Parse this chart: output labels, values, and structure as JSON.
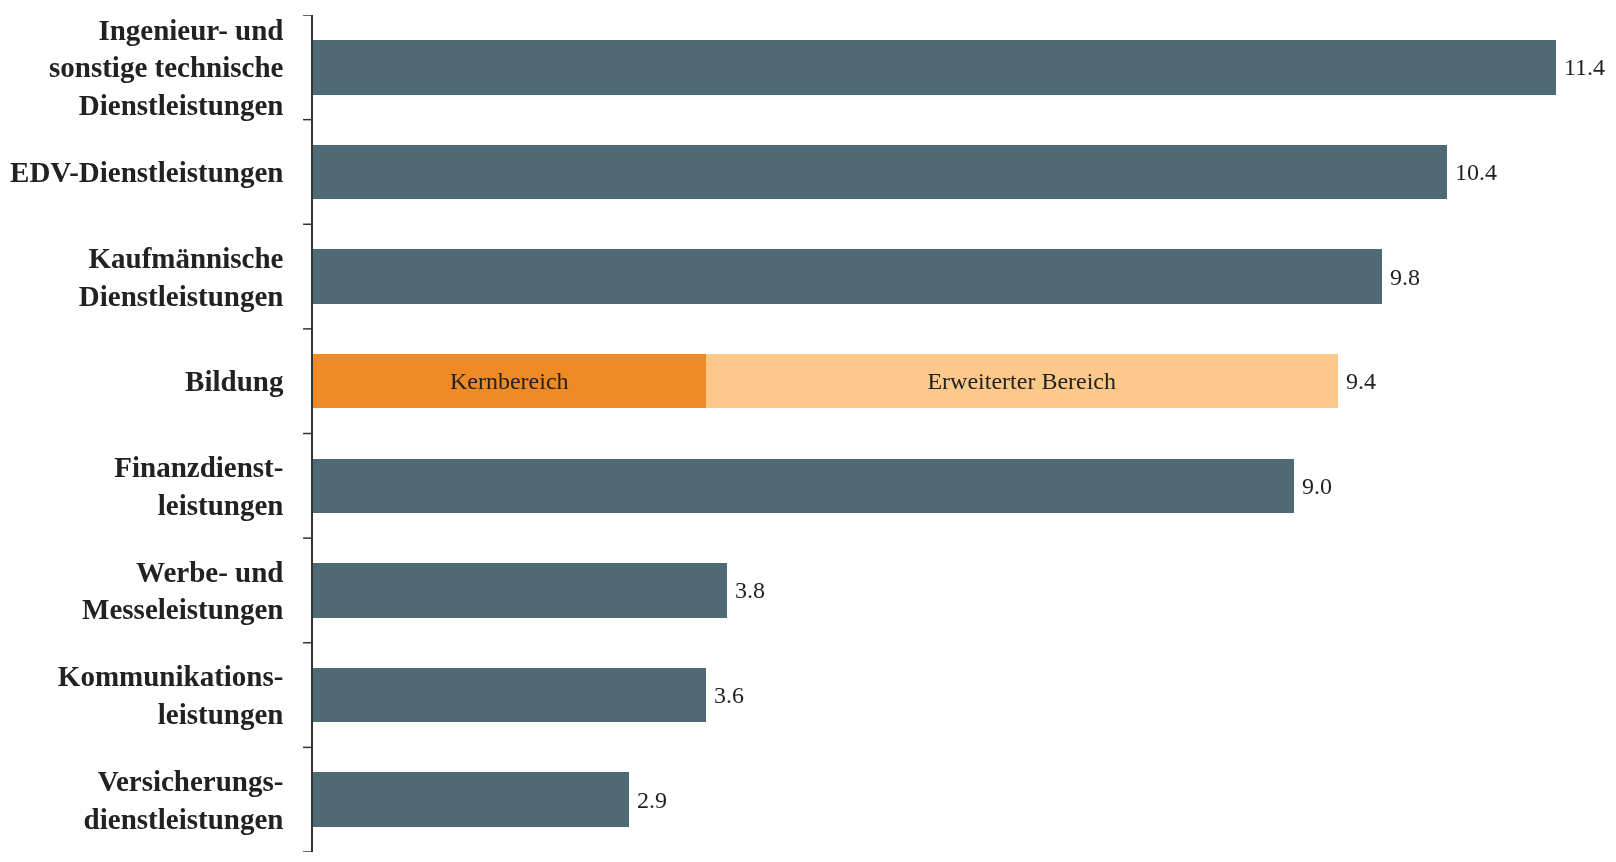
{
  "chart_data": {
    "type": "bar",
    "orientation": "horizontal",
    "stacked": true,
    "legend": false,
    "tick_labels": "y",
    "categories": [
      "Ingenieur- und\nsonstige technische\nDienstleistungen",
      "EDV-Dienstleistungen",
      "Kaufmännische\nDienstleistungen",
      "Bildung",
      "Finanzdienst-\nleistungen",
      "Werbe- und\nMesseleistungen",
      "Kommunikations-\nleistungen",
      "Versicherungs-\ndienstleistungen"
    ],
    "series": [
      {
        "color": "#4f6a75",
        "values": [
          11.4,
          10.4,
          9.8,
          null,
          9.0,
          3.8,
          3.6,
          2.9
        ],
        "value_labels": [
          "11.4",
          "10.4",
          "9.8",
          null,
          "9.0",
          "3.8",
          "3.6",
          "2.9"
        ]
      },
      {
        "name": "Kernbereich",
        "color": "#f08a24",
        "values": [
          null,
          null,
          null,
          3.6,
          null,
          null,
          null,
          null
        ]
      },
      {
        "name": "Erweiterter Bereich",
        "color": "#fcc98a",
        "values": [
          null,
          null,
          null,
          5.8,
          null,
          null,
          null,
          null
        ]
      }
    ],
    "totals": [
      null,
      null,
      null,
      "9.4",
      null,
      null,
      null,
      null
    ]
  }
}
